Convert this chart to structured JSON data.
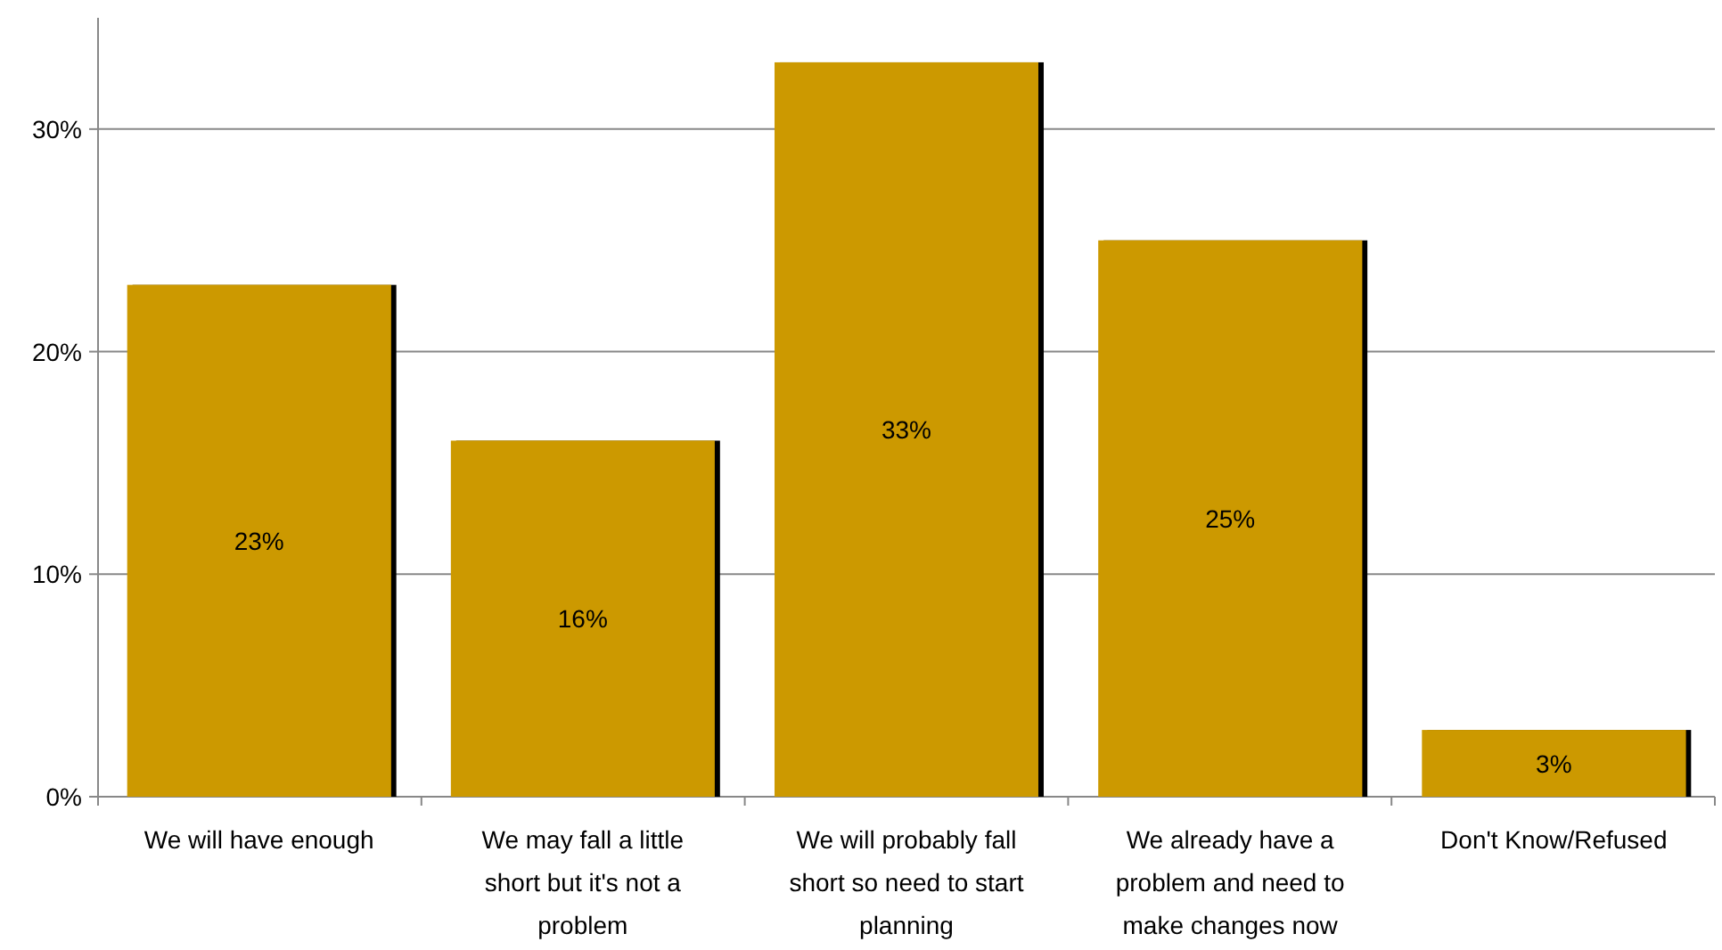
{
  "chart_data": {
    "type": "bar",
    "categories": [
      "We will have enough",
      "We may fall a little short but it's not a problem",
      "We will probably fall short so need to start planning",
      "We already have a problem and need to make changes now",
      "Don't Know/Refused"
    ],
    "values": [
      23,
      16,
      33,
      25,
      3
    ],
    "value_labels": [
      "23%",
      "16%",
      "33%",
      "25%",
      "3%"
    ],
    "color": "#cc9900",
    "ylim": [
      0,
      35
    ],
    "yticks": [
      {
        "value": 0,
        "label": "0%"
      },
      {
        "value": 10,
        "label": "10%"
      },
      {
        "value": 20,
        "label": "20%"
      },
      {
        "value": 30,
        "label": "30%"
      }
    ],
    "grid": "y"
  }
}
